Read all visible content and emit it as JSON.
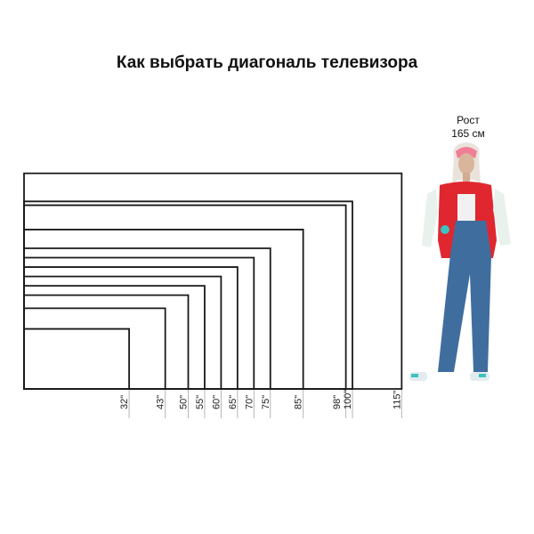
{
  "title": "Как выбрать диагональ телевизора",
  "person": {
    "height_label": "Рост",
    "height_value": "165 см"
  },
  "aspect_ratio": "16:9",
  "diagonals": [
    "32\"",
    "43\"",
    "50\"",
    "55\"",
    "60\"",
    "65\"",
    "70\"",
    "75\"",
    "85\"",
    "98\"",
    "100\"",
    "115\""
  ],
  "diagonal_values": [
    32,
    43,
    50,
    55,
    60,
    65,
    70,
    75,
    85,
    98,
    100,
    115
  ],
  "colors": {
    "outline": "#1a1a1a",
    "guide": "#b5b5b5",
    "jacket": "#e0262f",
    "jeans": "#3f6e9e",
    "sleeves": "#e8f1ec",
    "accent": "#3cc3c0"
  }
}
